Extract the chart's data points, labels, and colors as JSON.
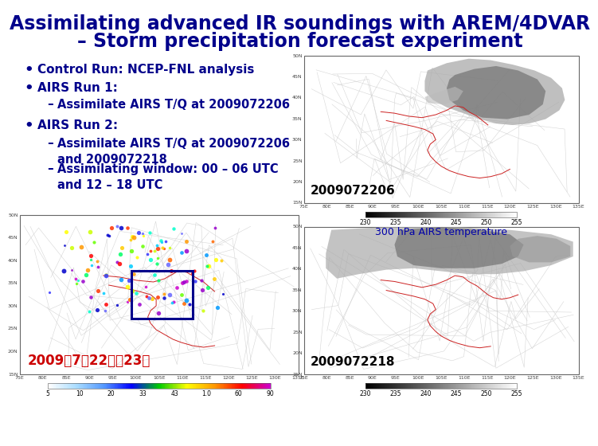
{
  "title_line1": "Assimilating advanced IR soundings with AREM/4DVAR",
  "title_line2": "– Storm precipitation forecast experiment",
  "title_color": "#00008B",
  "title_fontsize": 17,
  "background_color": "#FFFFFF",
  "bullet_color": "#00008B",
  "bullet_fontsize": 11,
  "bullets": [
    {
      "level": 1,
      "text": "Control Run: NCEP-FNL analysis"
    },
    {
      "level": 1,
      "text": "AIRS Run 1:"
    },
    {
      "level": 2,
      "text": "Assimilate AIRS T/Q at 2009072206"
    },
    {
      "level": 1,
      "text": "AIRS Run 2:"
    },
    {
      "level": 2,
      "text": "Assimilate AIRS T/Q at 2009072206\nand 2009072218"
    },
    {
      "level": 2,
      "text": "Assimilating window: 00 – 06 UTC\nand 12 – 18 UTC"
    }
  ],
  "map_top_label": "2009072206",
  "map_top_sublabel": "300 hPa AIRS temperature",
  "map_bottom_label": "2009072218",
  "bottom_date_label": "2009年7月22日～23日",
  "bottom_date_color": "#CC0000",
  "map_label_color": "#000000",
  "map_label_fontsize": 11,
  "sublabel_fontsize": 9,
  "sublabel_color": "#0000AA",
  "colorbar_ticks": [
    "230",
    "235",
    "240",
    "245",
    "250",
    "255"
  ],
  "precip_ticks": [
    "5",
    "10",
    "20",
    "33",
    "43",
    "1.0",
    "60",
    "90"
  ]
}
